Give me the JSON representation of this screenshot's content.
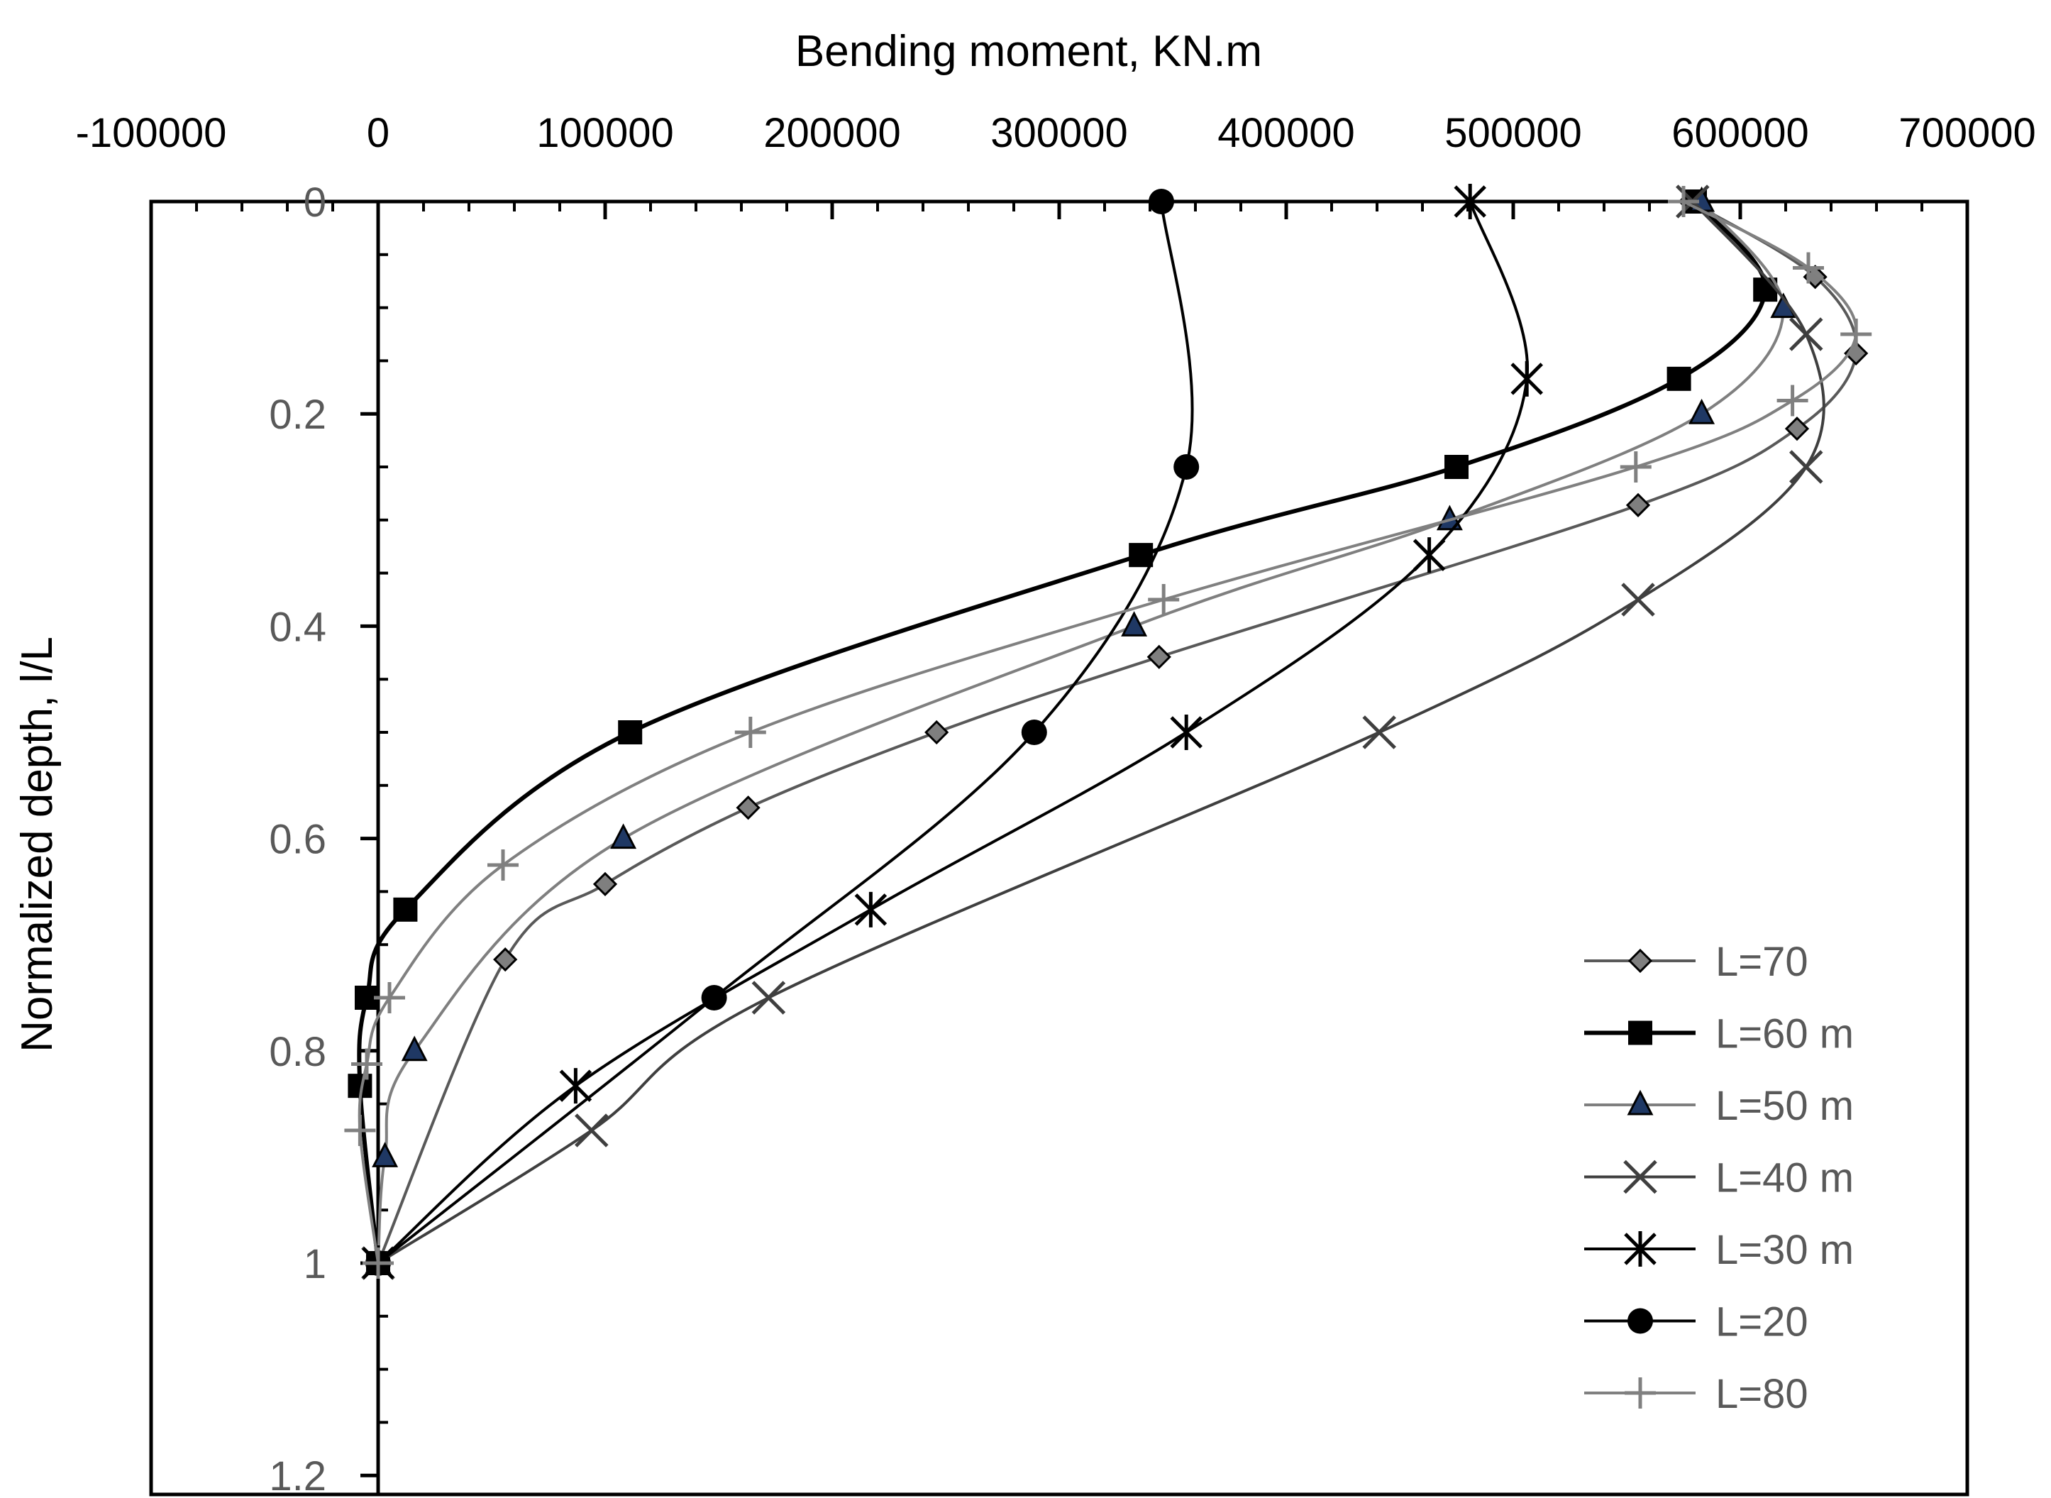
{
  "chart_data": {
    "type": "line",
    "title": "",
    "xlabel": "Bending moment, KN.m",
    "ylabel": "Normalized depth, l/L",
    "xlim": [
      -100000,
      700000
    ],
    "ylim": [
      0,
      1.2
    ],
    "y_inverted": true,
    "x_axis_position": "top",
    "x_ticks": [
      -100000,
      0,
      100000,
      200000,
      300000,
      400000,
      500000,
      600000,
      700000
    ],
    "y_ticks": [
      0,
      0.2,
      0.4,
      0.6,
      0.8,
      1,
      1.2
    ],
    "x_tick_labels": [
      "-100000",
      "0",
      "100000",
      "200000",
      "300000",
      "400000",
      "500000",
      "600000",
      "700000"
    ],
    "y_tick_labels": [
      "0",
      "0.2",
      "0.4",
      "0.6",
      "0.8",
      "1",
      "1.2"
    ],
    "grid": false,
    "legend_position": "bottom-right",
    "series": [
      {
        "name": "L=70",
        "color": "#595959",
        "marker": "diamond",
        "points": [
          [
            578000,
            0
          ],
          [
            633000,
            0.071
          ],
          [
            651000,
            0.143
          ],
          [
            625000,
            0.214
          ],
          [
            555000,
            0.286
          ],
          [
            344000,
            0.429
          ],
          [
            246000,
            0.5
          ],
          [
            163000,
            0.571
          ],
          [
            100000,
            0.643
          ],
          [
            56000,
            0.714
          ],
          [
            0,
            1
          ]
        ]
      },
      {
        "name": "L=60 m",
        "color": "#000000",
        "marker": "square",
        "points": [
          [
            580000,
            0
          ],
          [
            611000,
            0.083
          ],
          [
            573000,
            0.167
          ],
          [
            475000,
            0.25
          ],
          [
            336000,
            0.333
          ],
          [
            111000,
            0.5
          ],
          [
            12000,
            0.667
          ],
          [
            -5000,
            0.75
          ],
          [
            -8000,
            0.833
          ],
          [
            0,
            1
          ]
        ]
      },
      {
        "name": "L=50 m",
        "color": "#7f7f7f",
        "marker": "triangle",
        "points": [
          [
            583000,
            0
          ],
          [
            619000,
            0.1
          ],
          [
            583000,
            0.2
          ],
          [
            472000,
            0.3
          ],
          [
            333000,
            0.4
          ],
          [
            108000,
            0.6
          ],
          [
            16000,
            0.8
          ],
          [
            3000,
            0.9
          ],
          [
            0,
            1
          ]
        ]
      },
      {
        "name": "L=40 m",
        "color": "#3f3f3f",
        "marker": "x",
        "points": [
          [
            579000,
            0
          ],
          [
            629000,
            0.125
          ],
          [
            629000,
            0.25
          ],
          [
            555000,
            0.375
          ],
          [
            441000,
            0.5
          ],
          [
            172000,
            0.75
          ],
          [
            94000,
            0.875
          ],
          [
            0,
            1
          ]
        ]
      },
      {
        "name": "L=30 m",
        "color": "#000000",
        "marker": "star",
        "points": [
          [
            481000,
            0
          ],
          [
            506000,
            0.167
          ],
          [
            463000,
            0.333
          ],
          [
            356000,
            0.5
          ],
          [
            217000,
            0.667
          ],
          [
            87000,
            0.833
          ],
          [
            0,
            1
          ]
        ]
      },
      {
        "name": "L=20",
        "color": "#000000",
        "marker": "circle",
        "points": [
          [
            345000,
            0
          ],
          [
            356000,
            0.25
          ],
          [
            289000,
            0.5
          ],
          [
            148000,
            0.75
          ],
          [
            0,
            1
          ]
        ]
      },
      {
        "name": "L=80",
        "color": "#808080",
        "marker": "plus",
        "points": [
          [
            575000,
            0
          ],
          [
            630000,
            0.0625
          ],
          [
            651000,
            0.125
          ],
          [
            623000,
            0.1875
          ],
          [
            554000,
            0.25
          ],
          [
            346000,
            0.375
          ],
          [
            164000,
            0.5
          ],
          [
            55000,
            0.625
          ],
          [
            5000,
            0.75
          ],
          [
            -5000,
            0.8125
          ],
          [
            -8000,
            0.875
          ],
          [
            0,
            1
          ]
        ]
      }
    ]
  }
}
